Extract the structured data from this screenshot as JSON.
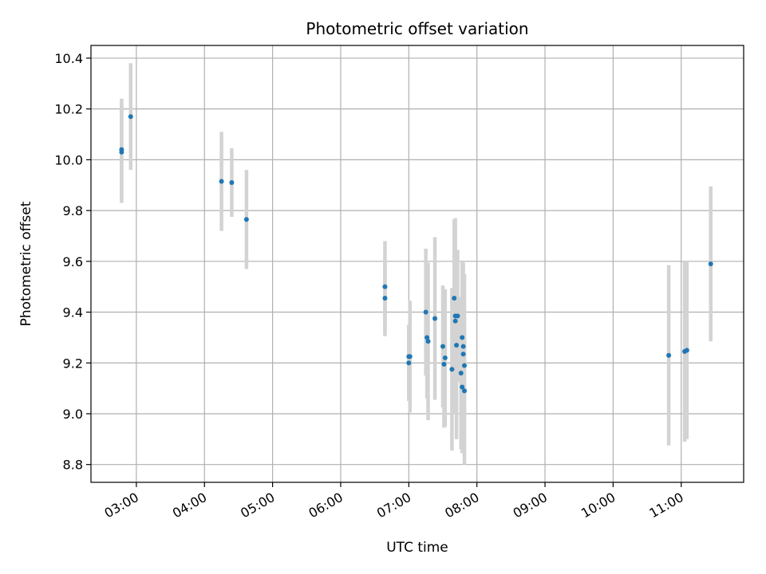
{
  "chart_data": {
    "type": "scatter",
    "title": "Photometric offset variation",
    "xlabel": "UTC time",
    "ylabel": "Photometric offset",
    "xlim": [
      "02:20",
      "11:55"
    ],
    "ylim": [
      8.73,
      10.45
    ],
    "x_ticks": [
      "03:00",
      "04:00",
      "05:00",
      "06:00",
      "07:00",
      "08:00",
      "09:00",
      "10:00",
      "11:00"
    ],
    "y_ticks": [
      "8.8",
      "9.0",
      "9.2",
      "9.4",
      "9.6",
      "9.8",
      "10.0",
      "10.2",
      "10.4"
    ],
    "grid": true,
    "marker_color": "#1f77b4",
    "errorbar_color": "#d3d3d3",
    "points": [
      {
        "x": "02:47",
        "y": 10.04,
        "err": 0.2
      },
      {
        "x": "02:47",
        "y": 10.03,
        "err": 0.2
      },
      {
        "x": "02:55",
        "y": 10.17,
        "err": 0.21
      },
      {
        "x": "04:15",
        "y": 9.915,
        "err": 0.195
      },
      {
        "x": "04:24",
        "y": 9.91,
        "err": 0.135
      },
      {
        "x": "04:37",
        "y": 9.765,
        "err": 0.195
      },
      {
        "x": "06:39",
        "y": 9.5,
        "err": 0.18
      },
      {
        "x": "06:39",
        "y": 9.455,
        "err": 0.15
      },
      {
        "x": "07:00",
        "y": 9.2,
        "err": 0.15
      },
      {
        "x": "07:00",
        "y": 9.225,
        "err": 0.125
      },
      {
        "x": "07:01",
        "y": 9.225,
        "err": 0.22
      },
      {
        "x": "07:15",
        "y": 9.4,
        "err": 0.25
      },
      {
        "x": "07:16",
        "y": 9.3,
        "err": 0.24
      },
      {
        "x": "07:17",
        "y": 9.285,
        "err": 0.31
      },
      {
        "x": "07:23",
        "y": 9.375,
        "err": 0.32
      },
      {
        "x": "07:30",
        "y": 9.265,
        "err": 0.24
      },
      {
        "x": "07:31",
        "y": 9.195,
        "err": 0.25
      },
      {
        "x": "07:32",
        "y": 9.22,
        "err": 0.27
      },
      {
        "x": "07:38",
        "y": 9.175,
        "err": 0.32
      },
      {
        "x": "07:40",
        "y": 9.455,
        "err": 0.31
      },
      {
        "x": "07:41",
        "y": 9.385,
        "err": 0.385
      },
      {
        "x": "07:41",
        "y": 9.365,
        "err": 0.255
      },
      {
        "x": "07:42",
        "y": 9.27,
        "err": 0.37
      },
      {
        "x": "07:43",
        "y": 9.385,
        "err": 0.26
      },
      {
        "x": "07:46",
        "y": 9.16,
        "err": 0.3
      },
      {
        "x": "07:47",
        "y": 9.105,
        "err": 0.26
      },
      {
        "x": "07:47",
        "y": 9.3,
        "err": 0.3
      },
      {
        "x": "07:48",
        "y": 9.235,
        "err": 0.28
      },
      {
        "x": "07:48",
        "y": 9.265,
        "err": 0.33
      },
      {
        "x": "07:49",
        "y": 9.09,
        "err": 0.29
      },
      {
        "x": "07:49",
        "y": 9.19,
        "err": 0.36
      },
      {
        "x": "10:49",
        "y": 9.23,
        "err": 0.355
      },
      {
        "x": "11:03",
        "y": 9.245,
        "err": 0.355
      },
      {
        "x": "11:05",
        "y": 9.25,
        "err": 0.35
      },
      {
        "x": "11:26",
        "y": 9.59,
        "err": 0.305
      }
    ]
  }
}
